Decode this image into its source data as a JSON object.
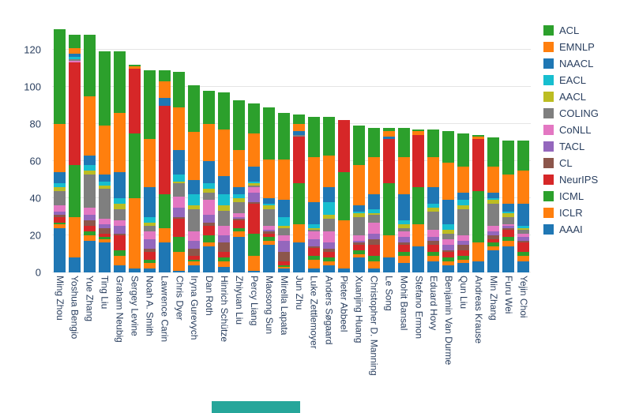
{
  "colors": {
    "background": "#ffffff",
    "grid": "#e5e5e5",
    "text": "#2a3f5f",
    "bottom_strip": "#26a69a"
  },
  "chart_data": {
    "type": "bar",
    "stacked": true,
    "title": "",
    "xlabel": "",
    "ylabel": "",
    "ylim": [
      0,
      141
    ],
    "grid": true,
    "legend_position": "right",
    "yticks": [
      0,
      20,
      40,
      60,
      80,
      100,
      120
    ],
    "categories": [
      "Ming Zhou",
      "Yoshua Bengio",
      "Yue Zhang",
      "Ting Liu",
      "Graham Neubig",
      "Sergey Levine",
      "Noah A. Smith",
      "Lawrence Carin",
      "Chris Dyer",
      "Iryna Gurevych",
      "Dan Roth",
      "Hinrich Schütze",
      "Zhiyuan Liu",
      "Percy Liang",
      "Maosong Sun",
      "Mirella Lapata",
      "Jun Zhu",
      "Luke Zettlemoyer",
      "Anders Søgaard",
      "Pieter Abbeel",
      "Xuanjing Huang",
      "Christopher D. Manning",
      "Le Song",
      "Mohit Bansal",
      "Stefano Ermon",
      "Eduard Hovy",
      "Benjamin Van Durme",
      "Qun Liu",
      "Andreas Krause",
      "Min Zhang",
      "Furu Wei",
      "Yejin Choi"
    ],
    "legend_order": [
      "ACL",
      "EMNLP",
      "NAACL",
      "EACL",
      "AACL",
      "COLING",
      "CoNLL",
      "TACL",
      "CL",
      "NeurIPS",
      "ICML",
      "ICLR",
      "AAAI"
    ],
    "series": [
      {
        "name": "AAAI",
        "color": "#1f77b4",
        "values": [
          24,
          8,
          17,
          16,
          4,
          2,
          2,
          16,
          1,
          4,
          14,
          3,
          19,
          1,
          15,
          2,
          16,
          2,
          4,
          2,
          8,
          2,
          8,
          5,
          14,
          6,
          4,
          5,
          6,
          12,
          14,
          6
        ]
      },
      {
        "name": "ICLR",
        "color": "#ff7f0e",
        "values": [
          2,
          22,
          3,
          2,
          5,
          38,
          3,
          8,
          10,
          2,
          2,
          3,
          3,
          8,
          2,
          1,
          10,
          5,
          2,
          26,
          2,
          4,
          12,
          4,
          12,
          3,
          2,
          2,
          10,
          2,
          3,
          3
        ]
      },
      {
        "name": "ICML",
        "color": "#2ca02c",
        "values": [
          1,
          28,
          2,
          1,
          3,
          35,
          2,
          18,
          8,
          1,
          4,
          2,
          2,
          12,
          2,
          1,
          22,
          2,
          2,
          26,
          2,
          3,
          28,
          2,
          20,
          2,
          2,
          2,
          28,
          2,
          2,
          2
        ]
      },
      {
        "name": "NeurIPS",
        "color": "#d62728",
        "values": [
          3,
          55,
          3,
          2,
          8,
          35,
          4,
          48,
          10,
          2,
          5,
          3,
          4,
          16,
          2,
          2,
          25,
          4,
          3,
          28,
          3,
          6,
          24,
          4,
          28,
          4,
          3,
          3,
          28,
          2,
          4,
          5
        ]
      },
      {
        "name": "CL",
        "color": "#8c564b",
        "values": [
          1,
          0,
          3,
          3,
          1,
          0,
          2,
          0,
          1,
          4,
          2,
          5,
          1,
          1,
          1,
          5,
          0,
          1,
          2,
          0,
          1,
          3,
          0,
          1,
          0,
          2,
          1,
          3,
          0,
          2,
          1,
          1
        ]
      },
      {
        "name": "TACL",
        "color": "#9467bd",
        "values": [
          2,
          0,
          3,
          2,
          4,
          0,
          5,
          0,
          5,
          4,
          4,
          4,
          1,
          5,
          1,
          6,
          0,
          4,
          3,
          0,
          1,
          3,
          0,
          3,
          0,
          2,
          3,
          2,
          0,
          2,
          1,
          2
        ]
      },
      {
        "name": "CoNLL",
        "color": "#e377c2",
        "values": [
          3,
          1,
          4,
          3,
          3,
          0,
          4,
          0,
          6,
          5,
          8,
          5,
          2,
          3,
          2,
          3,
          0,
          4,
          6,
          0,
          3,
          6,
          0,
          3,
          0,
          4,
          3,
          3,
          0,
          3,
          1,
          2
        ]
      },
      {
        "name": "COLING",
        "color": "#7f7f7f",
        "values": [
          8,
          1,
          18,
          16,
          6,
          0,
          3,
          0,
          7,
          12,
          4,
          8,
          6,
          1,
          9,
          4,
          1,
          1,
          7,
          0,
          10,
          4,
          0,
          2,
          0,
          10,
          3,
          14,
          0,
          12,
          4,
          2
        ]
      },
      {
        "name": "AACL",
        "color": "#bcbd22",
        "values": [
          2,
          0,
          2,
          2,
          3,
          0,
          2,
          0,
          1,
          2,
          2,
          3,
          2,
          1,
          2,
          1,
          0,
          1,
          2,
          0,
          2,
          1,
          0,
          2,
          0,
          2,
          2,
          2,
          0,
          2,
          2,
          1
        ]
      },
      {
        "name": "EACL",
        "color": "#17becf",
        "values": [
          2,
          1,
          3,
          2,
          3,
          0,
          3,
          0,
          4,
          6,
          3,
          6,
          2,
          1,
          1,
          5,
          0,
          2,
          7,
          0,
          1,
          2,
          0,
          2,
          0,
          2,
          3,
          3,
          0,
          1,
          1,
          1
        ]
      },
      {
        "name": "NAACL",
        "color": "#1f77b4",
        "values": [
          6,
          2,
          5,
          4,
          14,
          0,
          16,
          4,
          13,
          8,
          12,
          10,
          4,
          8,
          3,
          9,
          2,
          12,
          8,
          0,
          3,
          8,
          1,
          14,
          0,
          9,
          13,
          4,
          0,
          3,
          4,
          12
        ]
      },
      {
        "name": "EMNLP",
        "color": "#ff7f0e",
        "values": [
          26,
          3,
          32,
          26,
          32,
          1,
          26,
          9,
          23,
          26,
          20,
          25,
          20,
          18,
          21,
          22,
          4,
          24,
          17,
          0,
          22,
          20,
          3,
          20,
          2,
          16,
          20,
          14,
          1,
          14,
          16,
          18
        ]
      },
      {
        "name": "ACL",
        "color": "#2ca02c",
        "values": [
          51,
          7,
          33,
          40,
          33,
          1,
          37,
          6,
          19,
          25,
          18,
          20,
          27,
          16,
          28,
          25,
          5,
          22,
          21,
          0,
          21,
          16,
          2,
          16,
          1,
          15,
          17,
          18,
          1,
          16,
          18,
          16
        ]
      }
    ]
  }
}
